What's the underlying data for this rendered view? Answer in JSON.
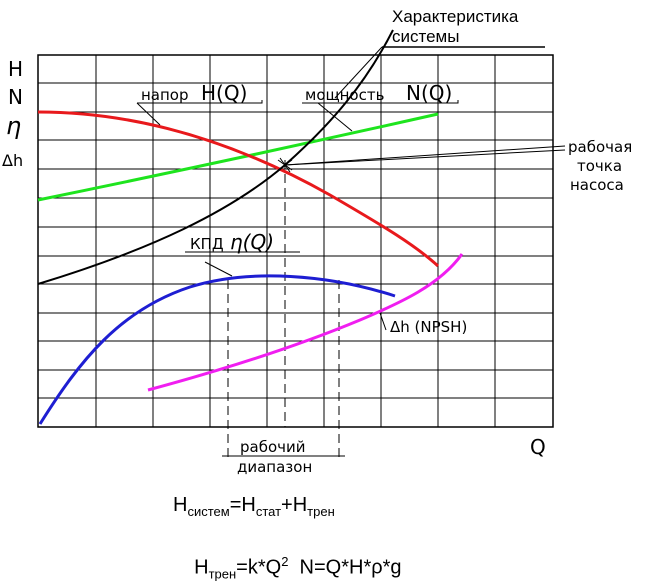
{
  "title_lines": [
    "Характеристика",
    "системы"
  ],
  "axis": {
    "y_symbols": [
      "H",
      "N",
      "η",
      "Δh"
    ],
    "x_symbol": "Q"
  },
  "curves": [
    {
      "name": "system-curve",
      "color": "#000000"
    },
    {
      "name": "head-curve",
      "color": "#e8191c"
    },
    {
      "name": "power-curve",
      "color": "#1ee41e"
    },
    {
      "name": "efficiency-curve",
      "color": "#1e1ed2"
    },
    {
      "name": "npsh-curve",
      "color": "#f01ef0"
    }
  ],
  "labels": {
    "head": {
      "word": "напор",
      "symbol": "H(Q)"
    },
    "power": {
      "word": "мощность",
      "symbol": "N(Q)"
    },
    "efficiency": {
      "word": "КПД",
      "symbol": "η(Q)"
    },
    "npsh": {
      "text": "Δh (NPSH)"
    },
    "working_point": [
      "рабочая",
      "точка",
      "насоса"
    ],
    "working_range": [
      "рабочий",
      "диапазон"
    ]
  },
  "formulas": {
    "f1": {
      "H": "H",
      "sub1": "систем",
      "eq": "=H",
      "sub2": "стат",
      "plus": "+H",
      "sub3": "трен"
    },
    "f2": {
      "H": "H",
      "sub1": "трен",
      "eq": "=k*Q",
      "sup": "2",
      "rest": "  N=Q*H*ρ*g"
    }
  }
}
